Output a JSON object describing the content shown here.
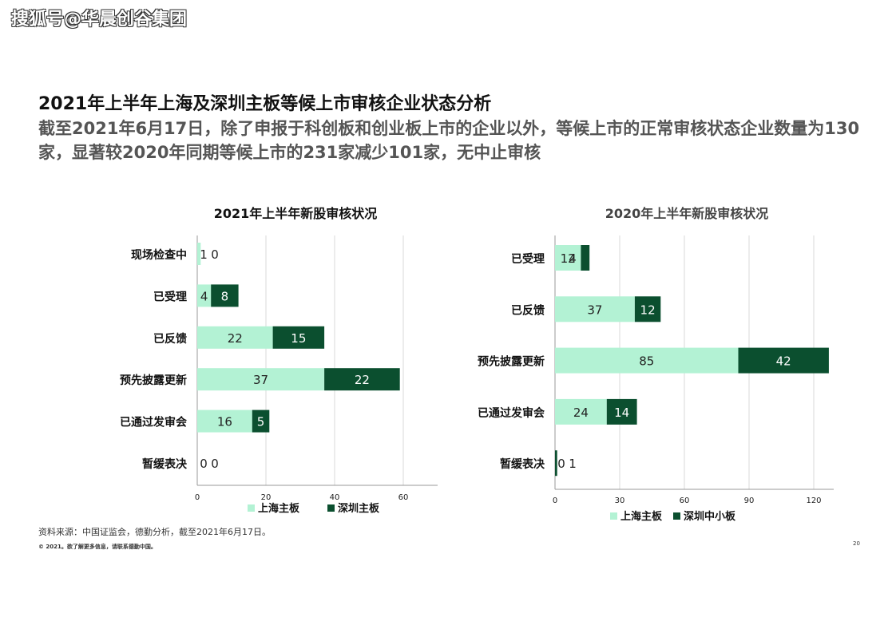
{
  "watermark": "搜狐号@华晨创谷集团",
  "title": "2021年上半年上海及深圳主板等候上市审核企业状态分析",
  "subtitle": "截至2021年6月17日，除了申报于科创板和创业板上市的企业以外，等候上市的正常审核状态企业数量为130家，显著较2020年同期等候上市的231家减少101家，无中止审核",
  "source": "资料来源：中国证监会，德勤分析，截至2021年6月17日。",
  "copyright": "© 2021。欲了解更多信息，请联系德勤中国。",
  "page_number": "20",
  "colors": {
    "light": "#b3f2d4",
    "dark": "#0b4f2f",
    "grid": "#d8d8d8",
    "axis": "#999999"
  },
  "chart_data": [
    {
      "type": "bar",
      "orientation": "horizontal",
      "stacked": true,
      "title": "2021年上半年新股审核状况",
      "categories": [
        "现场检查中",
        "已受理",
        "已反馈",
        "预先披露更新",
        "已通过发审会",
        "暂缓表决"
      ],
      "series": [
        {
          "name": "上海主板",
          "values": [
            1,
            4,
            22,
            37,
            16,
            0
          ]
        },
        {
          "name": "深圳主板",
          "values": [
            0,
            8,
            15,
            22,
            5,
            0
          ]
        }
      ],
      "xlim": [
        0,
        70
      ],
      "xticks": [
        0,
        20,
        40,
        60
      ],
      "grid": true,
      "legend": "bottom"
    },
    {
      "type": "bar",
      "orientation": "horizontal",
      "stacked": true,
      "title": "2020年上半年新股审核状况",
      "categories": [
        "已受理",
        "已反馈",
        "预先披露更新",
        "已通过发审会",
        "暂缓表决"
      ],
      "series": [
        {
          "name": "上海主板",
          "values": [
            12,
            37,
            85,
            24,
            0
          ]
        },
        {
          "name": "深圳中小板",
          "values": [
            4,
            12,
            42,
            14,
            1
          ]
        }
      ],
      "xlim": [
        0,
        130
      ],
      "xticks": [
        0,
        30,
        60,
        90,
        120
      ],
      "grid": true,
      "legend": "bottom"
    }
  ]
}
